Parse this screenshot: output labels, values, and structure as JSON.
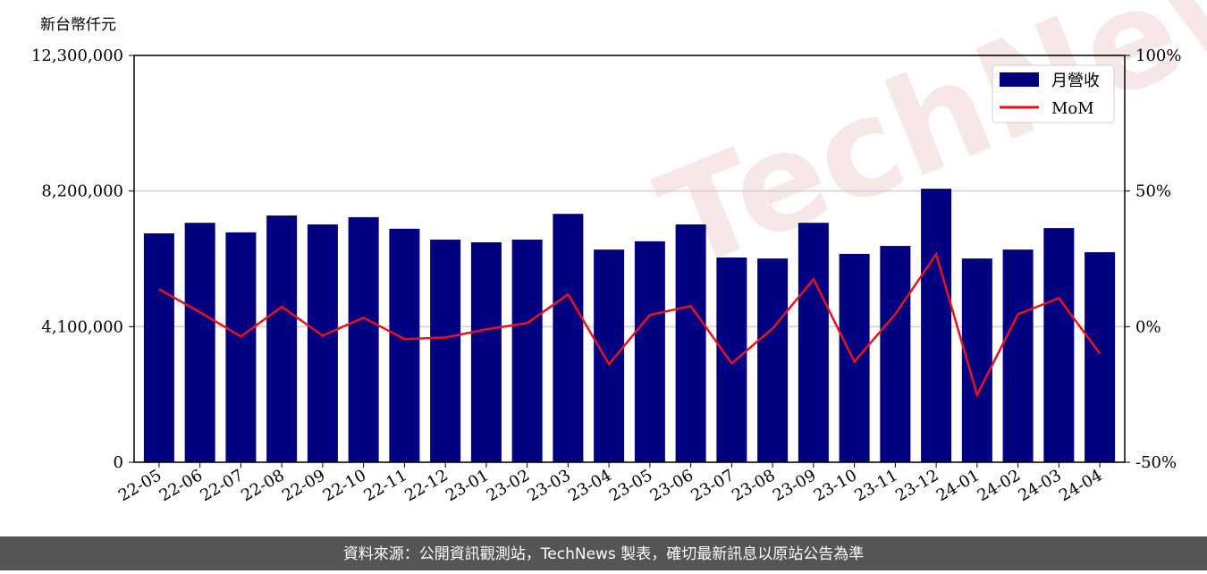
{
  "chart_data": {
    "type": "bar-line",
    "y_axis_label": "新台幣仟元",
    "watermark": "TechNews",
    "categories": [
      "22-05",
      "22-06",
      "22-07",
      "22-08",
      "22-09",
      "22-10",
      "22-11",
      "22-12",
      "23-01",
      "23-02",
      "23-03",
      "23-04",
      "23-05",
      "23-06",
      "23-07",
      "23-08",
      "23-09",
      "23-10",
      "23-11",
      "23-12",
      "24-01",
      "24-02",
      "24-03",
      "24-04"
    ],
    "series": [
      {
        "name": "月營收",
        "color": "#000080",
        "values": [
          6920000,
          7240000,
          6950000,
          7460000,
          7190000,
          7410000,
          7060000,
          6730000,
          6650000,
          6730000,
          7510000,
          6430000,
          6680000,
          7190000,
          6190000,
          6160000,
          7240000,
          6300000,
          6540000,
          8270000,
          6160000,
          6430000,
          7080000,
          6350000
        ]
      },
      {
        "name": "MoM",
        "color": "#e8121c",
        "axis": "y2",
        "values": [
          13.8,
          5.3,
          -3.6,
          7.3,
          -3.3,
          3.3,
          -4.6,
          -4.0,
          -1.0,
          1.3,
          11.9,
          -13.8,
          4.3,
          7.6,
          -13.5,
          -0.7,
          17.5,
          -12.9,
          4.6,
          26.7,
          -25.1,
          4.6,
          10.5,
          -9.9
        ]
      }
    ],
    "ylim": [
      0,
      12300000
    ],
    "yticks": [
      0,
      {
        "value": 4100000,
        "label": "4,100,000"
      },
      {
        "value": 8200000,
        "label": "8,200,000"
      },
      {
        "value": 12300000,
        "label": "12,300,000"
      }
    ],
    "y2lim": [
      -50,
      100
    ],
    "y2ticks": [
      {
        "value": -50,
        "label": "-50%"
      },
      {
        "value": 0,
        "label": "0%"
      },
      {
        "value": 50,
        "label": "50%"
      },
      {
        "value": 100,
        "label": "100%"
      }
    ],
    "grid": true,
    "legend": "upper-right",
    "footer": "資料來源：公開資訊觀測站，TechNews 製表，確切最新訊息以原站公告為準"
  }
}
